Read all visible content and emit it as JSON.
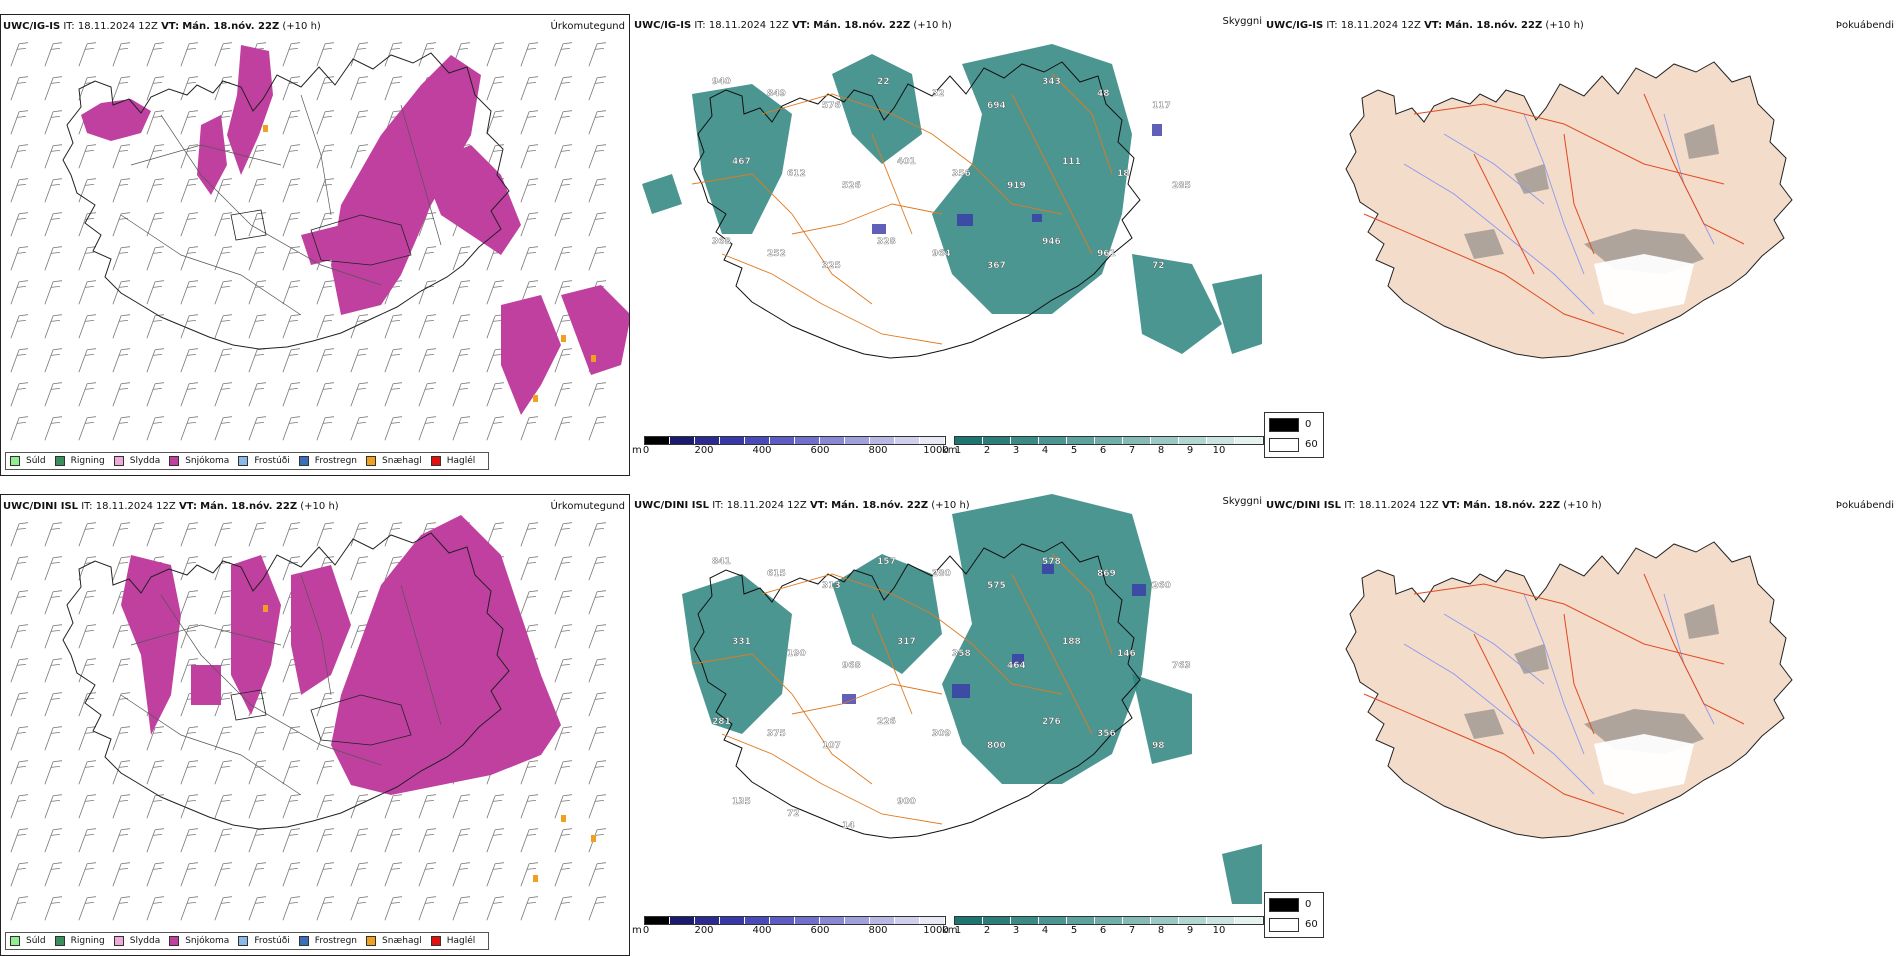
{
  "rows": [
    {
      "model": "UWC/IG-IS",
      "it_label": "IT:",
      "it_value": "18.11.2024 12Z",
      "vt_label": "VT:",
      "vt_value": "Mán. 18.nóv. 22Z",
      "lead": "(+10 h)"
    },
    {
      "model": "UWC/DINI ISL",
      "it_label": "IT:",
      "it_value": "18.11.2024 12Z",
      "vt_label": "VT:",
      "vt_value": "Mán. 18.nóv. 22Z",
      "lead": "(+10 h)"
    }
  ],
  "panel_titles": {
    "precip": "Úrkomutegund",
    "cloud": "Skyggni",
    "fog": "Þokuábendi"
  },
  "precip_legend": [
    {
      "label": "Súld",
      "color": "#90ee90"
    },
    {
      "label": "Rigning",
      "color": "#3a8f5a"
    },
    {
      "label": "Slydda",
      "color": "#f0a8d8"
    },
    {
      "label": "Snjókoma",
      "color": "#c040a0"
    },
    {
      "label": "Frostúði",
      "color": "#8ab8e8"
    },
    {
      "label": "Frostregn",
      "color": "#3a6eb8"
    },
    {
      "label": "Snæhagl",
      "color": "#f0a020"
    },
    {
      "label": "Haglél",
      "color": "#e01010"
    }
  ],
  "ceiling_legend": {
    "unit": "m",
    "ticks": [
      "0",
      "200",
      "400",
      "600",
      "800",
      "1000"
    ],
    "colors": [
      "#000000",
      "#1a1a6e",
      "#2a2a90",
      "#3838a8",
      "#4a4ab8",
      "#5c5cc4",
      "#7070cc",
      "#8888d4",
      "#a0a0dc",
      "#b8b8e4",
      "#d0d0ec",
      "#e8e8f4"
    ]
  },
  "visibility_legend": {
    "unit": "km",
    "ticks": [
      "1",
      "2",
      "3",
      "4",
      "5",
      "6",
      "7",
      "8",
      "9",
      "10"
    ],
    "colors": [
      "#1e7470",
      "#2a7e7a",
      "#3a8a86",
      "#4a9692",
      "#5ca29e",
      "#70aeaa",
      "#86bab6",
      "#9cc8c4",
      "#b4d6d2",
      "#cce4e0",
      "#e4f2f0"
    ]
  },
  "fog_legend": [
    {
      "label": "0",
      "color": "#000000"
    },
    {
      "label": "60",
      "color": "#ffffff"
    }
  ],
  "cloud_labels_top": [
    "940",
    "849",
    "576",
    "22",
    "32",
    "694",
    "343",
    "48",
    "117",
    "467",
    "612",
    "526",
    "401",
    "356",
    "919",
    "111",
    "18",
    "285",
    "368",
    "252",
    "325",
    "328",
    "964",
    "367",
    "946",
    "961",
    "72"
  ],
  "cloud_labels_bottom": [
    "841",
    "615",
    "313",
    "157",
    "280",
    "575",
    "578",
    "869",
    "260",
    "331",
    "190",
    "968",
    "317",
    "358",
    "464",
    "188",
    "146",
    "763",
    "281",
    "375",
    "107",
    "226",
    "309",
    "800",
    "276",
    "356",
    "98",
    "135",
    "72",
    "14",
    "900"
  ]
}
